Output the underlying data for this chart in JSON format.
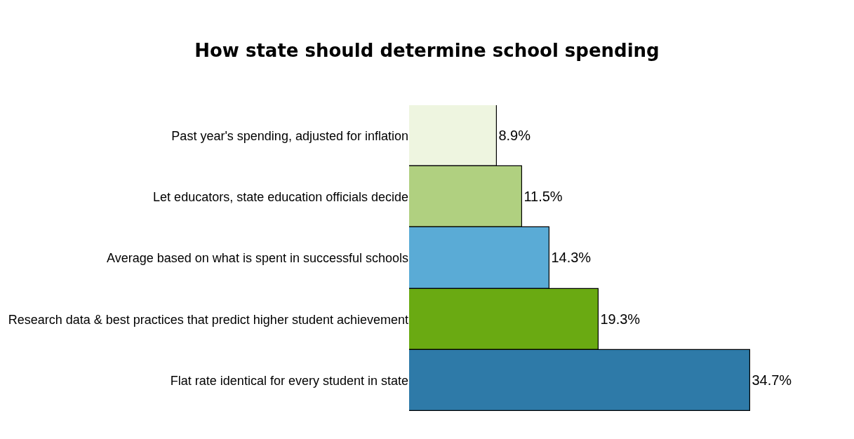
{
  "chart_data": {
    "type": "bar",
    "orientation": "horizontal",
    "title": "How state should determine school spending",
    "categories": [
      "Past year's spending, adjusted for inflation",
      "Let educators, state education officials decide",
      "Average based on what is spent in successful schools",
      "Research data & best practices that predict higher student achievement",
      "Flat rate identical for every student in state"
    ],
    "values": [
      8.9,
      11.5,
      14.3,
      19.3,
      34.7
    ],
    "value_labels": [
      "8.9%",
      "11.5%",
      "14.3%",
      "19.3%",
      "34.7%"
    ],
    "colors": [
      "#eef5e0",
      "#b0d080",
      "#5aabd6",
      "#6aaa12",
      "#2e7aa8"
    ]
  }
}
